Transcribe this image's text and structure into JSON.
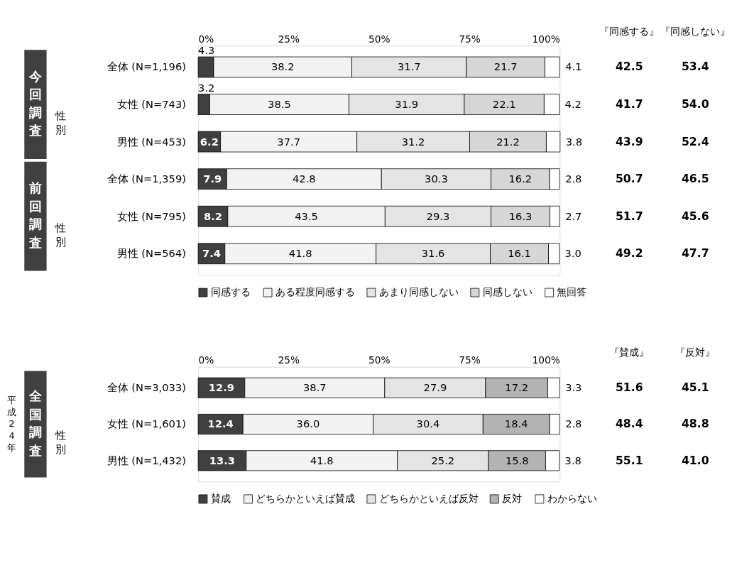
{
  "chart_data": [
    {
      "type": "bar",
      "orientation": "horizontal",
      "stacked": true,
      "legend": "bottom",
      "grid": false,
      "categories": [
        "全体 (N=1,196)",
        "女性 (N=743)",
        "男性 (N=453)",
        "全体 (N=1,359)",
        "女性 (N=795)",
        "男性 (N=564)"
      ],
      "xlim": [
        0,
        100
      ],
      "xticks": [
        {
          "value": 0,
          "label": "0%"
        },
        {
          "value": 25,
          "label": "25%"
        },
        {
          "value": 50,
          "label": "50%"
        },
        {
          "value": 75,
          "label": "75%"
        },
        {
          "value": 100,
          "label": "100%"
        }
      ],
      "series": [
        {
          "name": "同感する",
          "color": "#404040",
          "values": [
            4.3,
            3.2,
            6.2,
            7.9,
            8.2,
            7.4
          ],
          "value_labels": [
            "4.3",
            "3.2",
            "6.2",
            "7.9",
            "8.2",
            "7.4"
          ]
        },
        {
          "name": "ある程度同感する",
          "color": "#f2f2f2",
          "values": [
            38.2,
            38.5,
            37.7,
            42.8,
            43.5,
            41.8
          ],
          "value_labels": [
            "38.2",
            "38.5",
            "37.7",
            "42.8",
            "43.5",
            "41.8"
          ]
        },
        {
          "name": "あまり同感しない",
          "color": "#e4e4e4",
          "values": [
            31.7,
            31.9,
            31.2,
            30.3,
            29.3,
            31.6
          ],
          "value_labels": [
            "31.7",
            "31.9",
            "31.2",
            "30.3",
            "29.3",
            "31.6"
          ]
        },
        {
          "name": "同感しない",
          "color": "#d6d6d6",
          "values": [
            21.7,
            22.1,
            21.2,
            16.2,
            16.3,
            16.1
          ],
          "value_labels": [
            "21.7",
            "22.1",
            "21.2",
            "16.2",
            "16.3",
            "16.1"
          ]
        },
        {
          "name": "無回答",
          "color": "#ffffff",
          "values": [
            4.1,
            4.2,
            3.8,
            2.8,
            2.7,
            3.0
          ],
          "value_labels": [
            "4.1",
            "4.2",
            "3.8",
            "2.8",
            "2.7",
            "3.0"
          ]
        }
      ],
      "annotations": [
        "『同感する』",
        "『同感しない』",
        "42.5",
        "53.4",
        "41.7",
        "54.0",
        "43.9",
        "52.4",
        "50.7",
        "46.5",
        "51.7",
        "45.6",
        "49.2",
        "47.7",
        "今回調査",
        "性別",
        "前回調査",
        "性別"
      ]
    },
    {
      "type": "bar",
      "orientation": "horizontal",
      "stacked": true,
      "legend": "bottom",
      "grid": false,
      "categories": [
        "全体 (N=3,033)",
        "女性 (N=1,601)",
        "男性 (N=1,432)"
      ],
      "xlim": [
        0,
        100
      ],
      "xticks": [
        {
          "value": 0,
          "label": "0%"
        },
        {
          "value": 25,
          "label": "25%"
        },
        {
          "value": 50,
          "label": "50%"
        },
        {
          "value": 75,
          "label": "75%"
        },
        {
          "value": 100,
          "label": "100%"
        }
      ],
      "series": [
        {
          "name": "賛成",
          "color": "#404040",
          "values": [
            12.9,
            12.4,
            13.3
          ],
          "value_labels": [
            "12.9",
            "12.4",
            "13.3"
          ]
        },
        {
          "name": "どちらかといえば賛成",
          "color": "#f2f2f2",
          "values": [
            38.7,
            36.0,
            41.8
          ],
          "value_labels": [
            "38.7",
            "36.0",
            "41.8"
          ]
        },
        {
          "name": "どちらかといえば反対",
          "color": "#e4e4e4",
          "values": [
            27.9,
            30.4,
            25.2
          ],
          "value_labels": [
            "27.9",
            "30.4",
            "25.2"
          ]
        },
        {
          "name": "反対",
          "color": "#b3b3b3",
          "values": [
            17.2,
            18.4,
            15.8
          ],
          "value_labels": [
            "17.2",
            "18.4",
            "15.8"
          ]
        },
        {
          "name": "わからない",
          "color": "#ffffff",
          "values": [
            3.3,
            2.8,
            3.8
          ],
          "value_labels": [
            "3.3",
            "2.8",
            "3.8"
          ]
        }
      ],
      "annotations": [
        "『賛成』",
        "『反対』",
        "51.6",
        "45.1",
        "48.4",
        "48.8",
        "55.1",
        "41.0",
        "全国調査",
        "性別",
        "平成24年"
      ]
    }
  ]
}
